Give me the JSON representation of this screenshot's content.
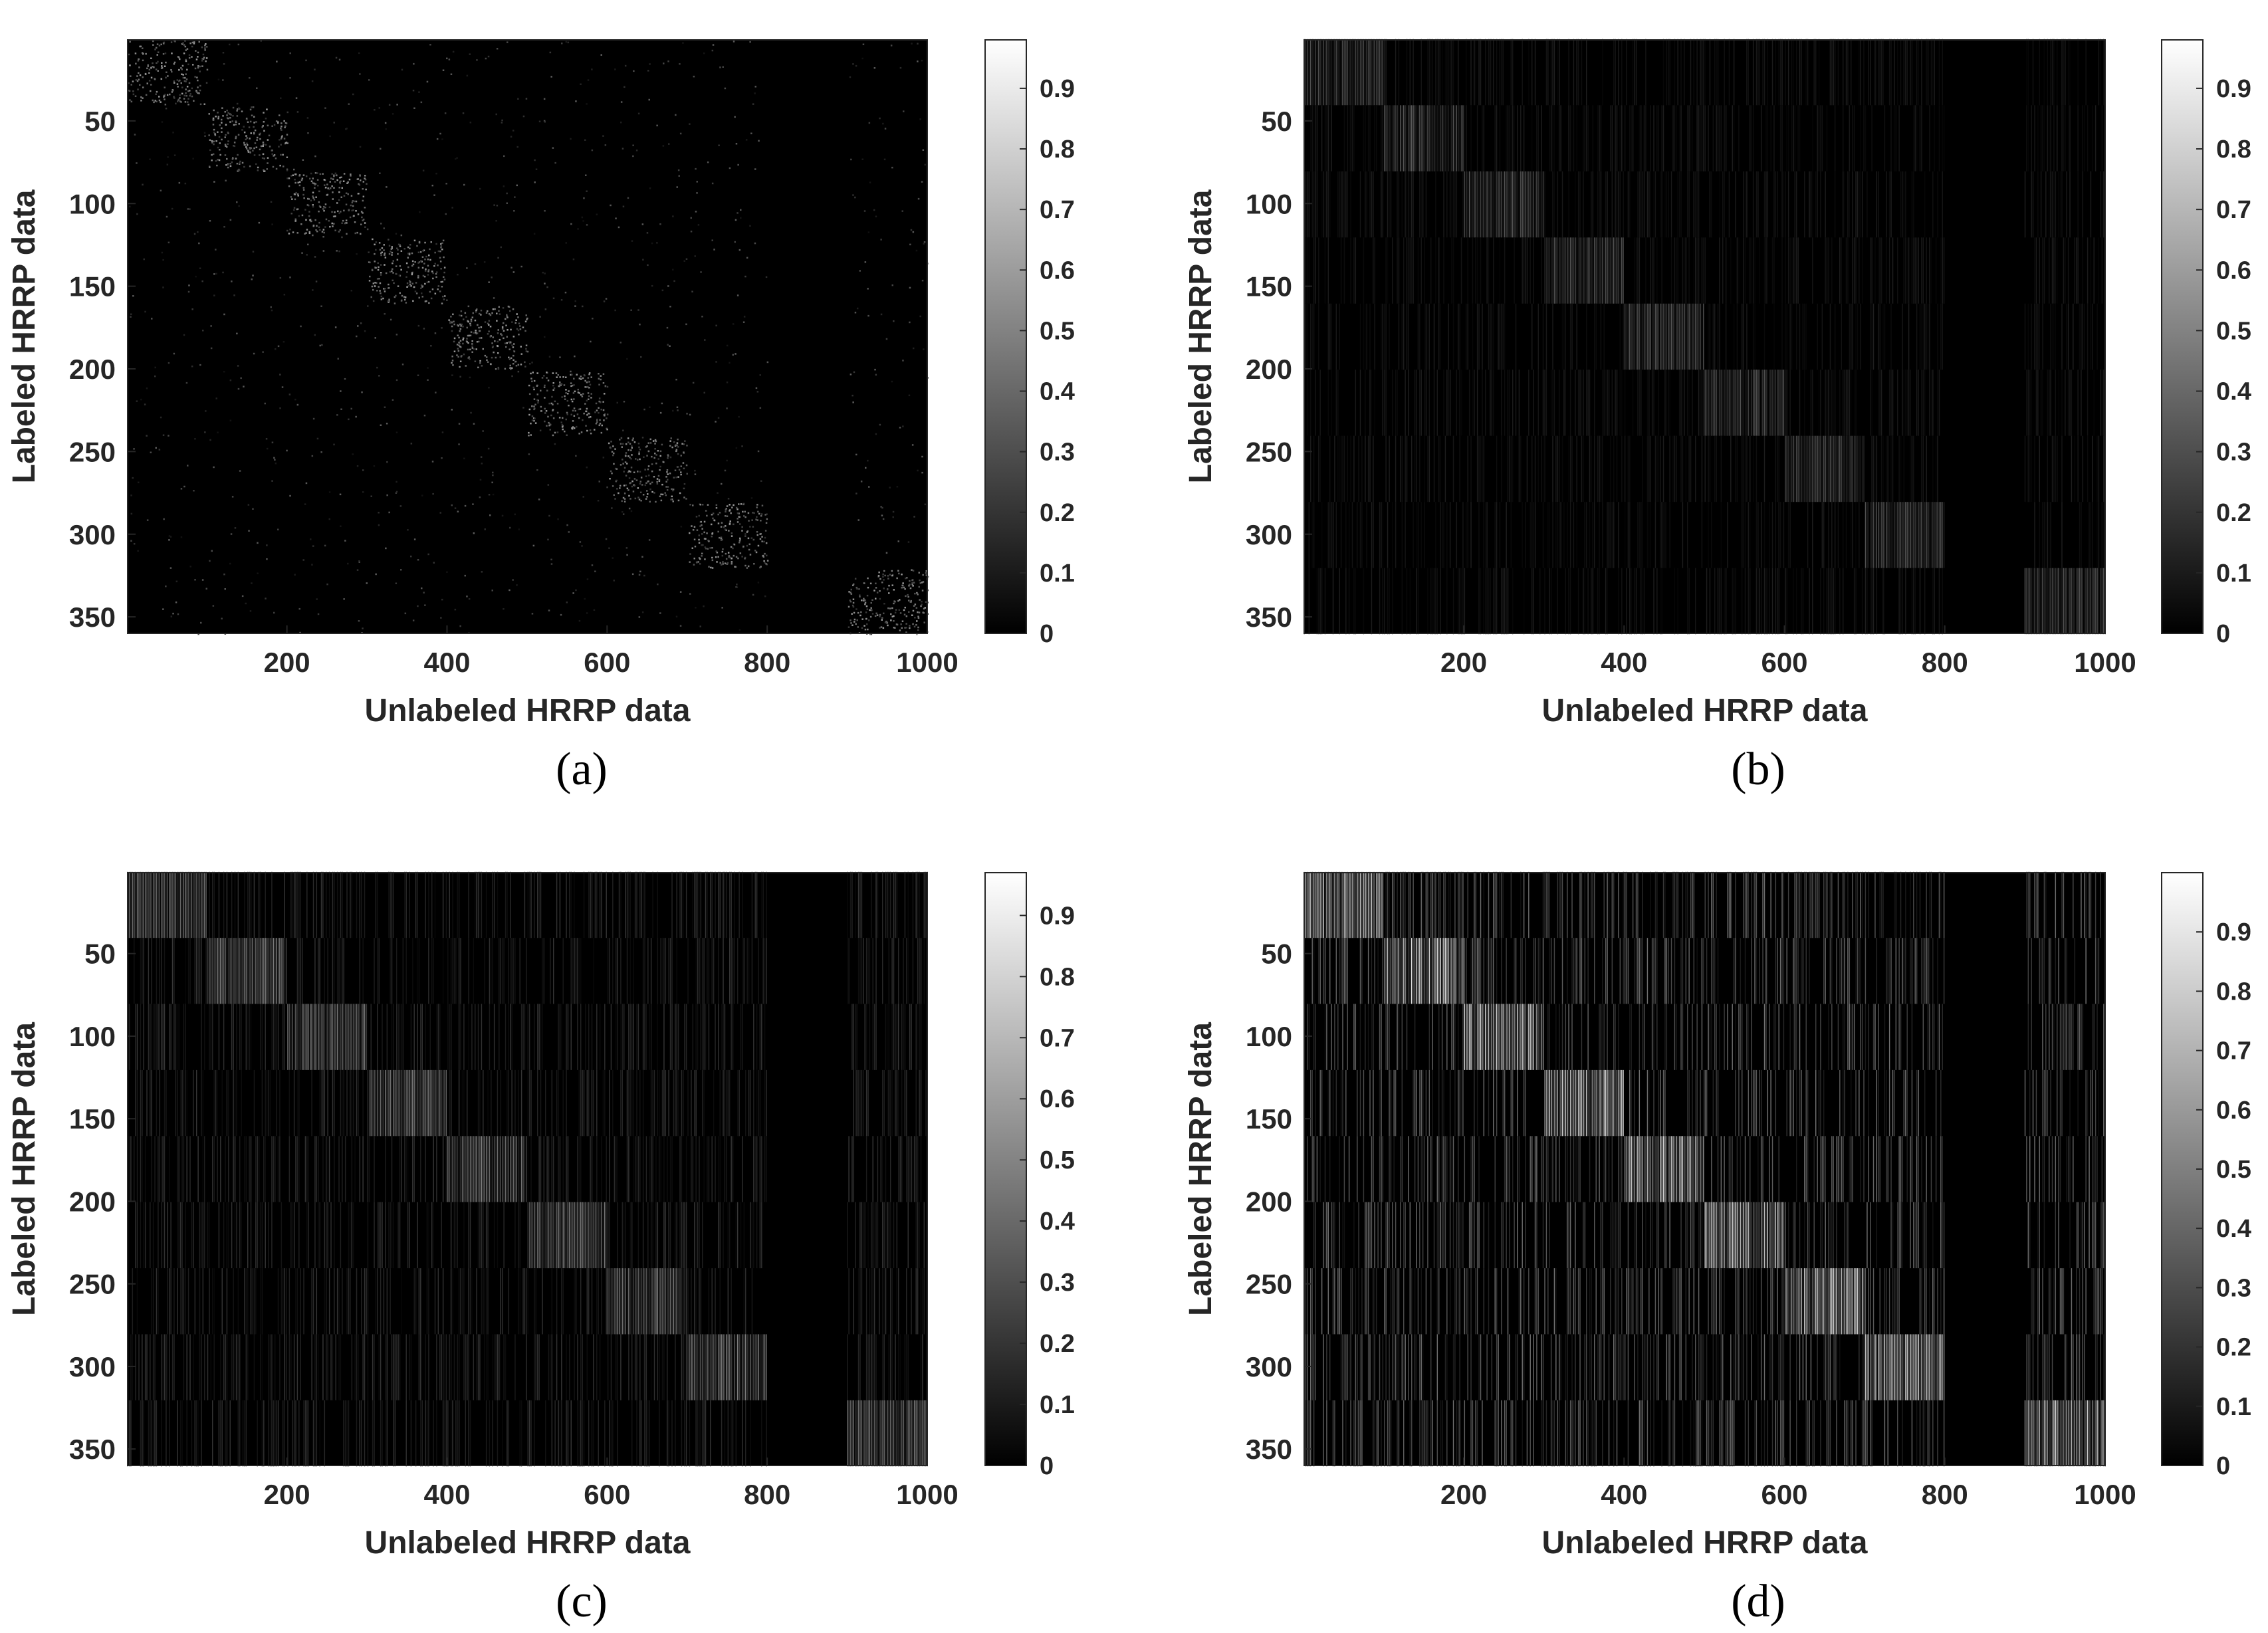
{
  "chart_data": [
    {
      "type": "heatmap",
      "caption": "(a)",
      "xlabel": "Unlabeled HRRP data",
      "ylabel": "Labeled HRRP data",
      "xlim": [
        1,
        1000
      ],
      "ylim": [
        1,
        360
      ],
      "x_ticks": [
        200,
        400,
        600,
        800,
        1000
      ],
      "y_ticks": [
        50,
        100,
        150,
        200,
        250,
        300,
        350
      ],
      "y_reversed": true,
      "colormap": "gray",
      "clim": [
        0,
        0.98
      ],
      "colorbar_ticks": [
        0,
        0.1,
        0.2,
        0.3,
        0.4,
        0.5,
        0.6,
        0.7,
        0.8,
        0.9
      ],
      "grid": false,
      "pattern": "sparse-diagonal",
      "class_blocks": {
        "n_classes": 9,
        "rows_per_class": 40,
        "cols_per_class": 100,
        "first_block_cols": [
          1,
          100
        ],
        "last_block_cols": [
          900,
          1000
        ]
      },
      "block_intensity": {
        "diagonal": 0.6,
        "off_diagonal": 0.03,
        "density_diagonal": 0.06,
        "density_off": 0.003
      }
    },
    {
      "type": "heatmap",
      "caption": "(b)",
      "xlabel": "Unlabeled HRRP data",
      "ylabel": "Labeled HRRP data",
      "xlim": [
        1,
        1000
      ],
      "ylim": [
        1,
        360
      ],
      "x_ticks": [
        200,
        400,
        600,
        800,
        1000
      ],
      "y_ticks": [
        50,
        100,
        150,
        200,
        250,
        300,
        350
      ],
      "y_reversed": true,
      "colormap": "gray",
      "clim": [
        0,
        0.98
      ],
      "colorbar_ticks": [
        0,
        0.1,
        0.2,
        0.3,
        0.4,
        0.5,
        0.6,
        0.7,
        0.8,
        0.9
      ],
      "grid": false,
      "pattern": "block-diagonal-stripes",
      "class_blocks": {
        "n_classes": 9,
        "rows_per_class": 40,
        "cols_per_class": 100,
        "first_block_cols": [
          1,
          100
        ],
        "last_block_cols": [
          900,
          1000
        ]
      },
      "block_intensity": {
        "diagonal": 0.35,
        "off_diagonal": 0.08
      }
    },
    {
      "type": "heatmap",
      "caption": "(c)",
      "xlabel": "Unlabeled HRRP data",
      "ylabel": "Labeled HRRP data",
      "xlim": [
        1,
        1000
      ],
      "ylim": [
        1,
        360
      ],
      "x_ticks": [
        200,
        400,
        600,
        800,
        1000
      ],
      "y_ticks": [
        50,
        100,
        150,
        200,
        250,
        300,
        350
      ],
      "y_reversed": true,
      "colormap": "gray",
      "clim": [
        0,
        0.97
      ],
      "colorbar_ticks": [
        0,
        0.1,
        0.2,
        0.3,
        0.4,
        0.5,
        0.6,
        0.7,
        0.8,
        0.9
      ],
      "grid": false,
      "pattern": "block-diagonal-stripes",
      "class_blocks": {
        "n_classes": 9,
        "rows_per_class": 40,
        "cols_per_class": 100,
        "first_block_cols": [
          1,
          100
        ],
        "last_block_cols": [
          900,
          1000
        ]
      },
      "block_intensity": {
        "diagonal": 0.5,
        "off_diagonal": 0.14
      }
    },
    {
      "type": "heatmap",
      "caption": "(d)",
      "xlabel": "Unlabeled HRRP data",
      "ylabel": "Labeled HRRP data",
      "xlim": [
        1,
        1000
      ],
      "ylim": [
        1,
        360
      ],
      "x_ticks": [
        200,
        400,
        600,
        800,
        1000
      ],
      "y_ticks": [
        50,
        100,
        150,
        200,
        250,
        300,
        350
      ],
      "y_reversed": true,
      "colormap": "gray",
      "clim": [
        0,
        1.0
      ],
      "colorbar_ticks": [
        0,
        0.1,
        0.2,
        0.3,
        0.4,
        0.5,
        0.6,
        0.7,
        0.8,
        0.9
      ],
      "grid": false,
      "pattern": "block-diagonal-stripes",
      "class_blocks": {
        "n_classes": 9,
        "rows_per_class": 40,
        "cols_per_class": 100,
        "first_block_cols": [
          1,
          100
        ],
        "last_block_cols": [
          900,
          1000
        ]
      },
      "block_intensity": {
        "diagonal": 0.9,
        "off_diagonal": 0.3
      }
    }
  ]
}
